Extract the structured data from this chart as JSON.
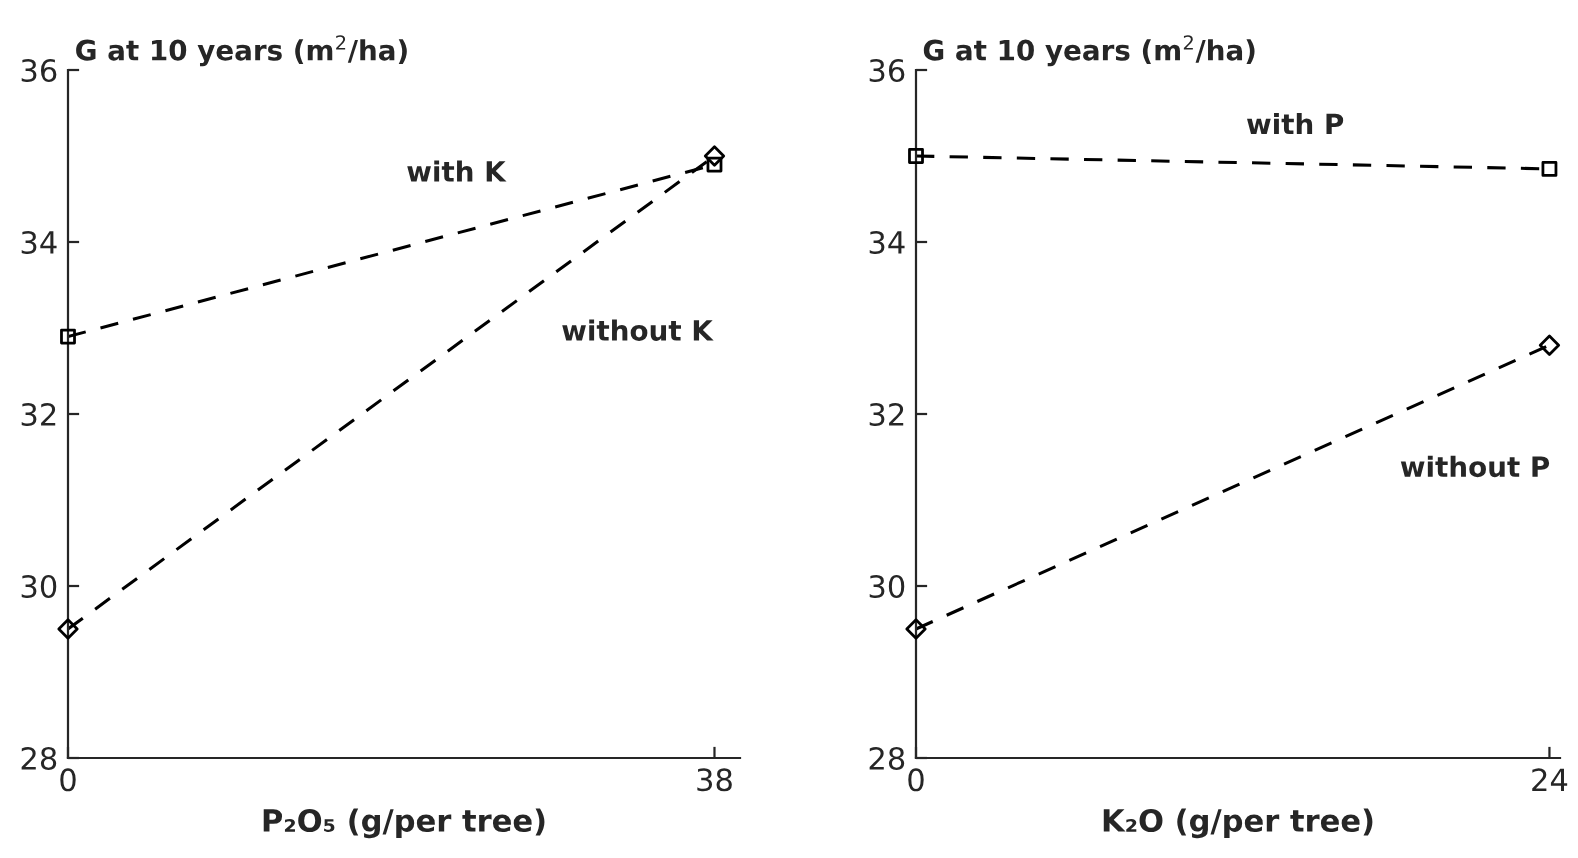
{
  "chart_data": [
    {
      "type": "line",
      "ylabel": "G at 10 years (m$^{2}$/ha)",
      "xlabel": "P₂O₅ (g/per tree)",
      "x": [
        0,
        38
      ],
      "xlim": [
        0,
        39.5
      ],
      "xticks": [
        0,
        38
      ],
      "ylim": [
        28,
        36
      ],
      "yticks": [
        28,
        30,
        32,
        34,
        36
      ],
      "line_style": "dashed",
      "grid": false,
      "legend": false,
      "series": [
        {
          "name": "with K",
          "color": "#000000",
          "marker": "square",
          "values": [
            32.9,
            34.9
          ]
        },
        {
          "name": "without K",
          "color": "#000000",
          "marker": "diamond",
          "values": [
            29.5,
            35.0
          ]
        }
      ]
    },
    {
      "type": "line",
      "ylabel": "G at 10 years (m$^{2}$/ha)",
      "xlabel": "K₂O (g/per tree)",
      "x": [
        0,
        24
      ],
      "xlim": [
        0,
        24.4
      ],
      "xticks": [
        0,
        24
      ],
      "ylim": [
        28,
        36
      ],
      "yticks": [
        28,
        30,
        32,
        34,
        36
      ],
      "line_style": "dashed",
      "grid": false,
      "legend": false,
      "series": [
        {
          "name": "with P",
          "color": "#000000",
          "marker": "square",
          "values": [
            35.0,
            34.85
          ]
        },
        {
          "name": "without P",
          "color": "#000000",
          "marker": "diamond",
          "values": [
            29.5,
            32.8
          ]
        }
      ]
    }
  ]
}
